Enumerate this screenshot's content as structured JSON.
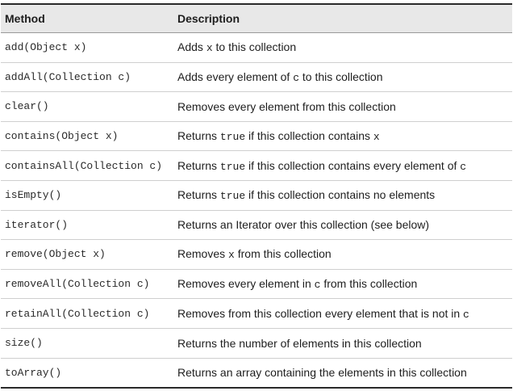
{
  "table": {
    "headers": [
      "Method",
      "Description"
    ],
    "rows": [
      {
        "method": "add(Object x)",
        "desc": [
          {
            "t": "Adds "
          },
          {
            "c": "x"
          },
          {
            "t": " to this collection"
          }
        ]
      },
      {
        "method": "addAll(Collection c)",
        "desc": [
          {
            "t": "Adds every element of "
          },
          {
            "c": "c"
          },
          {
            "t": " to this collection"
          }
        ]
      },
      {
        "method": "clear()",
        "desc": [
          {
            "t": "Removes every element from this collection"
          }
        ]
      },
      {
        "method": "contains(Object x)",
        "desc": [
          {
            "t": "Returns "
          },
          {
            "c": "true"
          },
          {
            "t": " if this collection contains "
          },
          {
            "c": "x"
          }
        ]
      },
      {
        "method": "containsAll(Collection c)",
        "desc": [
          {
            "t": "Returns "
          },
          {
            "c": "true"
          },
          {
            "t": " if this collection contains every element of "
          },
          {
            "c": "c"
          }
        ]
      },
      {
        "method": "isEmpty()",
        "desc": [
          {
            "t": "Returns "
          },
          {
            "c": "true"
          },
          {
            "t": " if this collection contains no elements"
          }
        ]
      },
      {
        "method": "iterator()",
        "desc": [
          {
            "t": "Returns an Iterator over this collection (see below)"
          }
        ]
      },
      {
        "method": "remove(Object x)",
        "desc": [
          {
            "t": "Removes "
          },
          {
            "c": "x"
          },
          {
            "t": " from this collection"
          }
        ]
      },
      {
        "method": "removeAll(Collection c)",
        "desc": [
          {
            "t": "Removes every element in "
          },
          {
            "c": "c"
          },
          {
            "t": " from this collection"
          }
        ]
      },
      {
        "method": "retainAll(Collection c)",
        "desc": [
          {
            "t": "Removes from this collection every element that is not in "
          },
          {
            "c": "c"
          }
        ]
      },
      {
        "method": "size()",
        "desc": [
          {
            "t": "Returns the number of elements in this collection"
          }
        ]
      },
      {
        "method": "toArray()",
        "desc": [
          {
            "t": "Returns an array containing the elements in this collection"
          }
        ]
      }
    ]
  }
}
